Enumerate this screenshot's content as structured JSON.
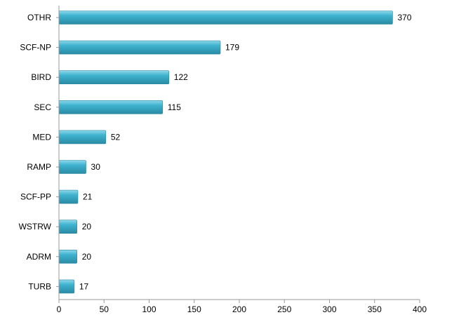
{
  "chart_data": {
    "type": "bar",
    "orientation": "horizontal",
    "title": "",
    "xlabel": "",
    "ylabel": "",
    "categories": [
      "OTHR",
      "SCF-NP",
      "BIRD",
      "SEC",
      "MED",
      "RAMP",
      "SCF-PP",
      "WSTRW",
      "ADRM",
      "TURB"
    ],
    "values": [
      370,
      179,
      122,
      115,
      52,
      30,
      21,
      20,
      20,
      17
    ],
    "value_labels": [
      "370",
      "179",
      "122",
      "115",
      "52",
      "30",
      "21",
      "20",
      "20",
      "17"
    ],
    "xlim": [
      0,
      400
    ],
    "x_ticks": [
      0,
      50,
      100,
      150,
      200,
      250,
      300,
      350,
      400
    ],
    "x_tick_labels": [
      "0",
      "50",
      "100",
      "150",
      "200",
      "250",
      "300",
      "350",
      "400"
    ],
    "grid": false,
    "legend": "none",
    "colors": {
      "bar_fill": "#3fb3cf",
      "bar_highlight": "#8fd8ea",
      "bar_shadow": "#2a8aa3",
      "axis": "#999999"
    }
  }
}
